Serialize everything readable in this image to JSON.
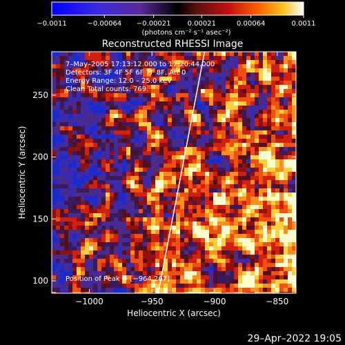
{
  "chart_data": {
    "type": "heatmap",
    "title": "Reconstructed RHESSI Image",
    "xlabel": "Heliocentric X (arcsec)",
    "ylabel": "Heliocentric Y (arcsec)",
    "xlim": [
      -1030,
      -835
    ],
    "ylim": [
      90,
      285
    ],
    "x_ticks": [
      -1000,
      -950,
      -900,
      -850
    ],
    "x_tick_labels": [
      "−1000",
      "−950",
      "−900",
      "−850"
    ],
    "y_ticks": [
      100,
      150,
      200,
      250
    ],
    "y_tick_labels": [
      "100",
      "150",
      "200",
      "250"
    ],
    "colorbar": {
      "range": [
        -0.0011,
        0.0011
      ],
      "ticks": [
        -0.0011,
        -0.00064,
        -0.00021,
        0.00021,
        0.00064,
        0.0011
      ],
      "tick_labels": [
        "−0.0011",
        "−0.00064",
        "−0.00021",
        "0.00021",
        "0.00064",
        "0.0011"
      ],
      "units": "(photons cm⁻² s⁻¹ asec⁻²)"
    },
    "annotations": [
      "7–May–2005 17:13:12.000 to 17:20:44.000",
      "Detectors: 3F 4F 5F 6F 7F 8F, Att 0",
      "Energy Range: 12.0 – 25.0 keV",
      "Clean    Total counts: 769."
    ],
    "peak_label": "Position of Peak = [−964,267]",
    "peak_position": [
      -964,
      267
    ],
    "limb_line": [
      [
        -945,
        90
      ],
      [
        -908,
        285
      ]
    ],
    "colors": {
      "background": "#000000",
      "negative": "#1030e0",
      "zero": "#3a1a6a",
      "positive_mid": "#e05010",
      "positive_high": "#ffffe0"
    }
  },
  "footer": {
    "timestamp": "29–Apr–2022 19:05"
  }
}
